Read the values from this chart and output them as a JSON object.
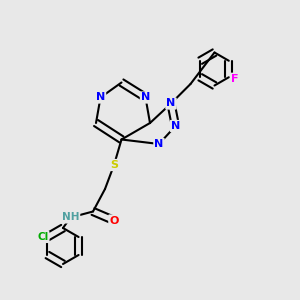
{
  "bg_color": "#e8e8e8",
  "atom_colors": {
    "N": "#0000ff",
    "O": "#ff0000",
    "S": "#cccc00",
    "Cl": "#00aa00",
    "F": "#ff00ff",
    "C": "#000000",
    "H": "#50a0a0"
  },
  "bond_color": "#000000",
  "double_bond_color": "#000000"
}
